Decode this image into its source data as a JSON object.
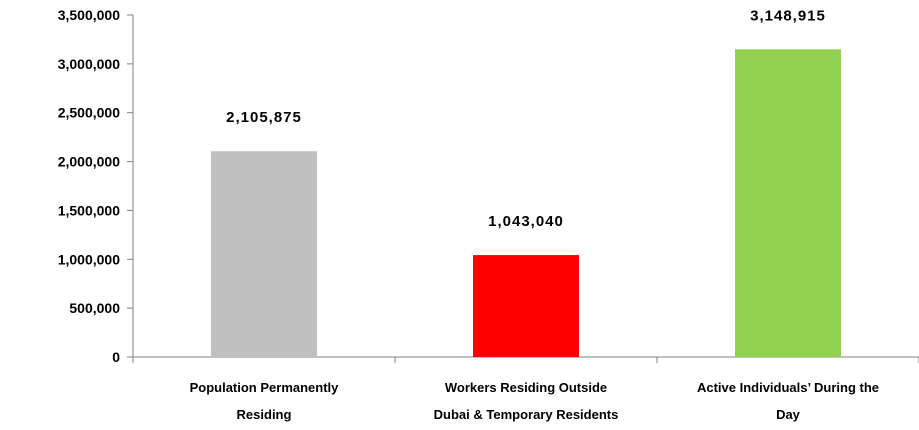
{
  "chart_data": {
    "type": "bar",
    "title": "",
    "xlabel": "",
    "ylabel": "",
    "categories": [
      [
        "Population Permanently",
        "Residing"
      ],
      [
        "Workers Residing Outside",
        "Dubai & Temporary Residents"
      ],
      [
        "Active Individuals’ During the",
        "Day"
      ]
    ],
    "values": [
      2105875,
      1043040,
      3148915
    ],
    "value_labels": [
      "2,105,875",
      "1,043,040",
      "3,148,915"
    ],
    "colors": [
      "#C0C0C0",
      "#FF0000",
      "#92D050"
    ],
    "ylim": [
      0,
      3500000
    ],
    "yticks": [
      0,
      500000,
      1000000,
      1500000,
      2000000,
      2500000,
      3000000,
      3500000
    ],
    "ytick_labels": [
      "0",
      "500,000",
      "1,000,000",
      "1,500,000",
      "2,000,000",
      "2,500,000",
      "3,000,000",
      "3,500,000"
    ],
    "grid": false,
    "legend": "none"
  }
}
